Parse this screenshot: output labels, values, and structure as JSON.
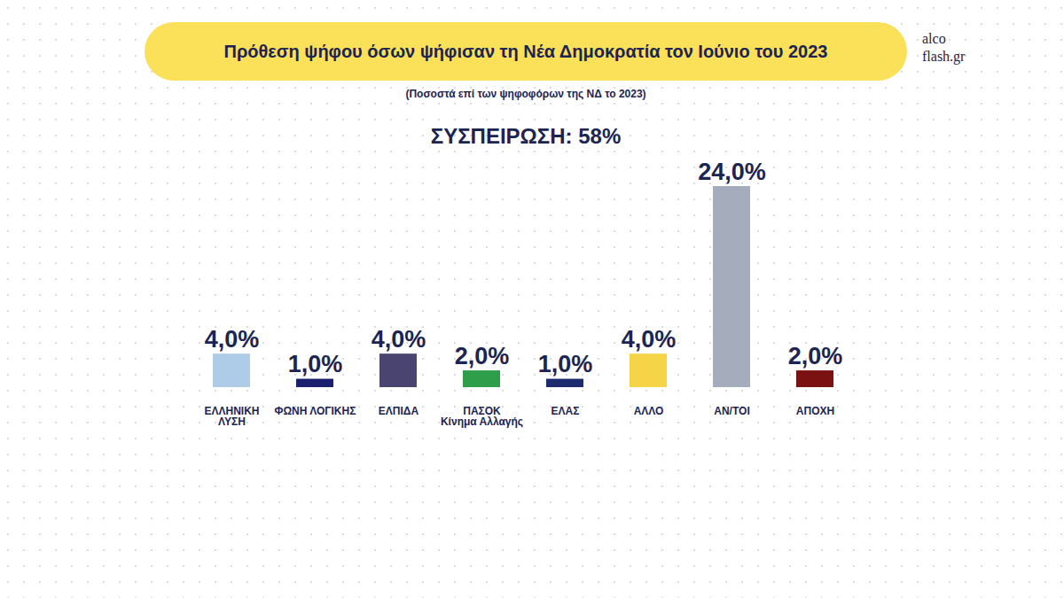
{
  "chart_data": {
    "type": "bar",
    "title": "Πρόθεση ψήφου όσων ψήφισαν τη Νέα Δημοκρατία τον Ιούνιο του 2023",
    "subtitle": "(Ποσοστά επί των ψηφοφόρων της ΝΔ το 2023)",
    "annotation": "ΣΥΣΠΕΙΡΩΣΗ: 58%",
    "source": "alco flash.gr",
    "categories": [
      "ΕΛΛΗΝΙΚΗ\nΛΥΣΗ",
      "ΦΩΝΗ ΛΟΓΙΚΗΣ",
      "ΕΛΠΙΔΑ",
      "ΠΑΣΟΚ\nΚίνημα Αλλαγής",
      "ΕΛΑΣ",
      "ΑΛΛΟ",
      "ΑΝ/ΤΟΙ",
      "ΑΠΟΧΗ"
    ],
    "values": [
      4,
      1,
      4,
      2,
      1,
      4,
      24,
      2
    ],
    "value_labels": [
      "4,0%",
      "1,0%",
      "4,0%",
      "2,0%",
      "1,0%",
      "4,0%",
      "24,0%",
      "2,0%"
    ],
    "colors": [
      "#aecbe8",
      "#1a1f6e",
      "#4a4470",
      "#2e9e4a",
      "#1d2a6e",
      "#f5d547",
      "#a5adbd",
      "#7a1212"
    ],
    "ylim": [
      0,
      24
    ],
    "data_labels": true,
    "tick_labels": "x",
    "grid": false
  }
}
